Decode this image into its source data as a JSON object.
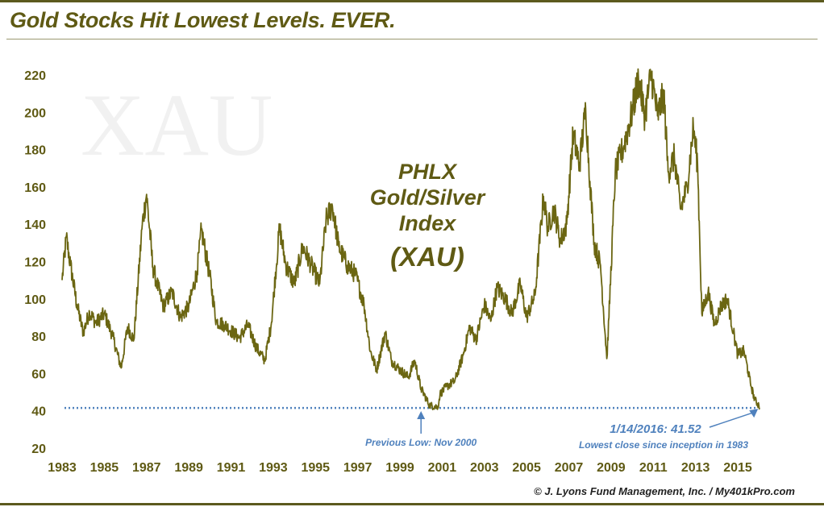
{
  "title": "Gold Stocks Hit Lowest Levels. EVER.",
  "copyright": "© J. Lyons Fund Management, Inc. / My401kPro.com",
  "colors": {
    "line": "#6b6612",
    "accent": "#4f81bd",
    "title": "#5f5a14"
  },
  "chart_data": {
    "type": "line",
    "title": "PHLX Gold/Silver Index (XAU)",
    "watermark": "XAU",
    "center_label_lines": [
      "PHLX",
      "Gold/Silver",
      "Index",
      "(XAU)"
    ],
    "xlabel": "",
    "ylabel": "",
    "xlim": [
      1983.0,
      2016.2
    ],
    "ylim": [
      20,
      230
    ],
    "y_ticks": [
      "220",
      "200",
      "180",
      "160",
      "140",
      "120",
      "100",
      "80",
      "60",
      "40",
      "20"
    ],
    "x_ticks": [
      "1983",
      "1985",
      "1987",
      "1989",
      "1991",
      "1993",
      "1995",
      "1997",
      "1999",
      "2001",
      "2003",
      "2005",
      "2007",
      "2009",
      "2011",
      "2013",
      "2015"
    ],
    "series": [
      {
        "name": "XAU",
        "x": [
          1983.0,
          1983.2,
          1983.4,
          1983.7,
          1984.0,
          1984.3,
          1984.6,
          1985.0,
          1985.4,
          1985.8,
          1986.1,
          1986.4,
          1986.8,
          1987.0,
          1987.3,
          1987.5,
          1987.8,
          1988.2,
          1988.6,
          1989.0,
          1989.4,
          1989.6,
          1990.0,
          1990.3,
          1990.7,
          1991.0,
          1991.4,
          1991.8,
          1992.2,
          1992.6,
          1992.9,
          1993.3,
          1993.6,
          1994.0,
          1994.4,
          1994.8,
          1995.2,
          1995.5,
          1995.8,
          1996.1,
          1996.5,
          1996.9,
          1997.3,
          1997.6,
          1997.9,
          1998.3,
          1998.6,
          1999.0,
          1999.4,
          1999.7,
          2000.0,
          2000.4,
          2000.8,
          2000.9,
          2001.2,
          2001.6,
          2002.0,
          2002.3,
          2002.6,
          2003.0,
          2003.3,
          2003.6,
          2004.0,
          2004.3,
          2004.7,
          2005.0,
          2005.4,
          2005.8,
          2006.0,
          2006.3,
          2006.6,
          2006.9,
          2007.2,
          2007.5,
          2007.8,
          2008.0,
          2008.2,
          2008.5,
          2008.8,
          2008.9,
          2009.2,
          2009.6,
          2010.0,
          2010.3,
          2010.6,
          2010.9,
          2011.2,
          2011.5,
          2011.7,
          2012.0,
          2012.3,
          2012.6,
          2012.9,
          2013.1,
          2013.3,
          2013.6,
          2013.9,
          2014.2,
          2014.5,
          2014.8,
          2015.0,
          2015.3,
          2015.6,
          2015.8,
          2016.0,
          2016.04
        ],
        "values": [
          110,
          133,
          118,
          97,
          82,
          93,
          87,
          92,
          80,
          63,
          85,
          78,
          140,
          156,
          117,
          108,
          96,
          104,
          90,
          96,
          115,
          137,
          112,
          88,
          86,
          83,
          79,
          86,
          74,
          67,
          86,
          138,
          118,
          108,
          128,
          118,
          108,
          142,
          150,
          128,
          118,
          113,
          97,
          72,
          62,
          82,
          67,
          62,
          58,
          67,
          52,
          43,
          42,
          49,
          53,
          56,
          70,
          85,
          78,
          97,
          88,
          106,
          100,
          92,
          108,
          90,
          102,
          155,
          138,
          148,
          131,
          140,
          188,
          172,
          202,
          163,
          130,
          118,
          68,
          90,
          168,
          182,
          200,
          218,
          198,
          221,
          198,
          210,
          168,
          176,
          148,
          160,
          192,
          172,
          92,
          104,
          86,
          96,
          100,
          82,
          70,
          72,
          55,
          46,
          43,
          41.52
        ]
      }
    ],
    "reference_line": {
      "y": 41.52
    },
    "annotations": [
      {
        "text": "Previous Low: Nov 2000",
        "x": 2000.0,
        "y": 42.0
      },
      {
        "text": "1/14/2016: 41.52",
        "x": 2016.04,
        "y": 41.52
      },
      {
        "text": "Lowest close since inception in 1983"
      }
    ]
  }
}
